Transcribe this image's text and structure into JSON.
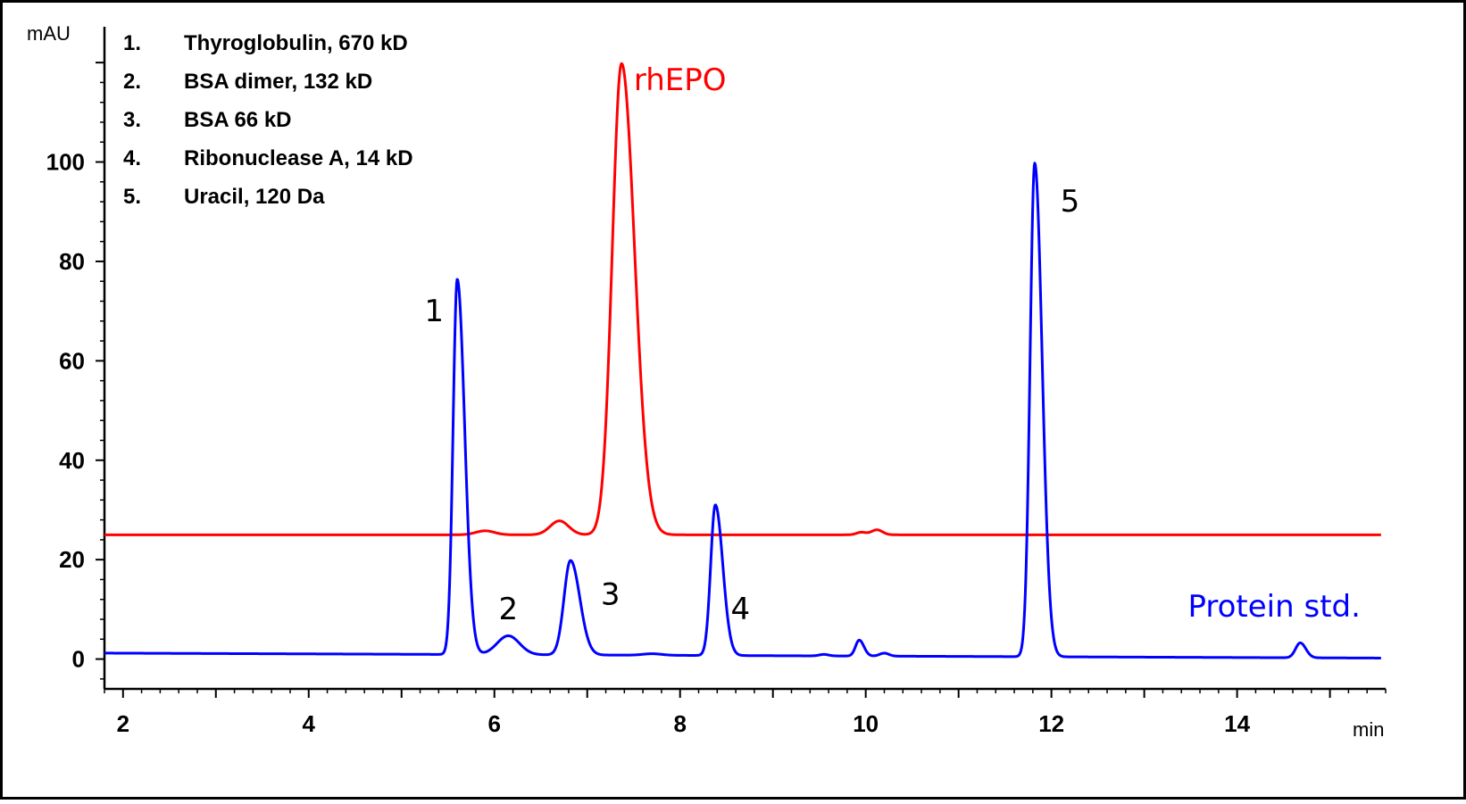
{
  "chart_data": {
    "type": "line",
    "xlabel": "min",
    "ylabel": "mAU",
    "xlim": [
      1.8,
      15.6
    ],
    "ylim": [
      -6,
      129
    ],
    "x_ticks": [
      2,
      4,
      6,
      8,
      10,
      12,
      14
    ],
    "y_ticks": [
      0,
      20,
      40,
      60,
      80,
      100
    ],
    "legend": {
      "placement": "top-left",
      "items": [
        {
          "num": "1.",
          "text": "Thyroglobulin, 670 kD"
        },
        {
          "num": "2.",
          "text": "BSA dimer, 132 kD"
        },
        {
          "num": "3.",
          "text": "BSA 66 kD"
        },
        {
          "num": "4.",
          "text": "Ribonuclease A, 14 kD"
        },
        {
          "num": "5.",
          "text": "Uracil, 120 Da"
        }
      ]
    },
    "series": [
      {
        "name": "rhEPO",
        "color": "#ff0000",
        "baseline": 25,
        "x_end": 15.55,
        "peaks": [
          {
            "x": 5.9,
            "height": 0.8,
            "width_left": 0.1,
            "width_right": 0.1
          },
          {
            "x": 6.7,
            "height": 2.8,
            "width_left": 0.1,
            "width_right": 0.1
          },
          {
            "x": 7.37,
            "height": 94.8,
            "width_left": 0.1,
            "width_right": 0.14
          },
          {
            "x": 9.95,
            "height": 0.5,
            "width_left": 0.05,
            "width_right": 0.05
          },
          {
            "x": 10.12,
            "height": 1.0,
            "width_left": 0.06,
            "width_right": 0.06
          }
        ]
      },
      {
        "name": "Protein std.",
        "color": "#0000ff",
        "baseline": 1.2,
        "baseline_end": 0.2,
        "x_end": 15.55,
        "peaks": [
          {
            "x": 5.6,
            "height": 75.5,
            "width_left": 0.045,
            "width_right": 0.08
          },
          {
            "x": 6.15,
            "height": 3.8,
            "width_left": 0.12,
            "width_right": 0.12
          },
          {
            "x": 6.82,
            "height": 19.0,
            "width_left": 0.07,
            "width_right": 0.1
          },
          {
            "x": 7.7,
            "height": 0.3,
            "width_left": 0.1,
            "width_right": 0.1
          },
          {
            "x": 8.38,
            "height": 30.3,
            "width_left": 0.05,
            "width_right": 0.08
          },
          {
            "x": 9.55,
            "height": 0.3,
            "width_left": 0.05,
            "width_right": 0.05
          },
          {
            "x": 9.93,
            "height": 3.2,
            "width_left": 0.04,
            "width_right": 0.05
          },
          {
            "x": 10.2,
            "height": 0.6,
            "width_left": 0.05,
            "width_right": 0.05
          },
          {
            "x": 11.82,
            "height": 99.3,
            "width_left": 0.05,
            "width_right": 0.08
          },
          {
            "x": 14.68,
            "height": 3.0,
            "width_left": 0.05,
            "width_right": 0.06
          }
        ]
      }
    ],
    "annotations": [
      {
        "text": "1",
        "x": 5.35,
        "y": 68
      },
      {
        "text": "2",
        "x": 6.15,
        "y": 8
      },
      {
        "text": "3",
        "x": 7.25,
        "y": 11
      },
      {
        "text": "4",
        "x": 8.65,
        "y": 8
      },
      {
        "text": "5",
        "x": 12.2,
        "y": 90
      }
    ],
    "series_labels": [
      {
        "series": "rhEPO",
        "x": 8.0,
        "y": 114.5
      },
      {
        "series": "Protein std.",
        "x": 14.4,
        "y": 8.5
      }
    ]
  }
}
